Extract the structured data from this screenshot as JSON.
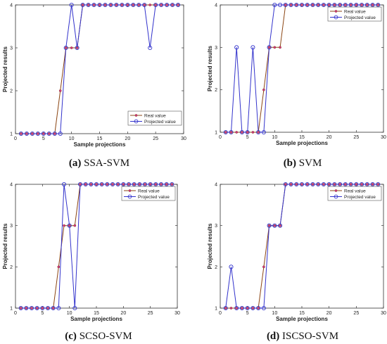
{
  "chart_data": [
    {
      "type": "line",
      "caption_letter": "(a)",
      "caption_text": " SSA-SVM",
      "xlabel": "Sample projections",
      "ylabel": "Projected results",
      "xlim": [
        0,
        30
      ],
      "ylim": [
        1,
        4
      ],
      "xticks": [
        0,
        5,
        10,
        15,
        20,
        25,
        30
      ],
      "yticks": [
        1,
        2,
        3,
        4
      ],
      "legend_position": "lower-right",
      "series": [
        {
          "name": "Real value",
          "color": "#8B4513",
          "marker": "dot",
          "x": [
            1,
            2,
            3,
            4,
            5,
            6,
            7,
            8,
            9,
            10,
            11,
            12,
            13,
            14,
            15,
            16,
            17,
            18,
            19,
            20,
            21,
            22,
            23,
            24,
            25,
            26,
            27,
            28,
            29
          ],
          "y": [
            1,
            1,
            1,
            1,
            1,
            1,
            1,
            2,
            3,
            3,
            3,
            4,
            4,
            4,
            4,
            4,
            4,
            4,
            4,
            4,
            4,
            4,
            4,
            4,
            4,
            4,
            4,
            4,
            4
          ]
        },
        {
          "name": "Projected value",
          "color": "#3333CC",
          "marker": "circle",
          "x": [
            1,
            2,
            3,
            4,
            5,
            6,
            7,
            8,
            9,
            10,
            11,
            12,
            13,
            14,
            15,
            16,
            17,
            18,
            19,
            20,
            21,
            22,
            23,
            24,
            25,
            26,
            27,
            28,
            29
          ],
          "y": [
            1,
            1,
            1,
            1,
            1,
            1,
            1,
            1,
            3,
            4,
            3,
            4,
            4,
            4,
            4,
            4,
            4,
            4,
            4,
            4,
            4,
            4,
            4,
            3,
            4,
            4,
            4,
            4,
            4
          ]
        }
      ]
    },
    {
      "type": "line",
      "caption_letter": "(b)",
      "caption_text": " SVM",
      "xlabel": "Sample projections",
      "ylabel": "Projected results",
      "xlim": [
        0,
        30
      ],
      "ylim": [
        1,
        4
      ],
      "xticks": [
        0,
        5,
        10,
        15,
        20,
        25,
        30
      ],
      "yticks": [
        1,
        2,
        3,
        4
      ],
      "legend_position": "upper-right",
      "series": [
        {
          "name": "Real value",
          "color": "#8B4513",
          "marker": "dot",
          "x": [
            1,
            2,
            3,
            4,
            5,
            6,
            7,
            8,
            9,
            10,
            11,
            12,
            13,
            14,
            15,
            16,
            17,
            18,
            19,
            20,
            21,
            22,
            23,
            24,
            25,
            26,
            27,
            28,
            29
          ],
          "y": [
            1,
            1,
            1,
            1,
            1,
            1,
            1,
            2,
            3,
            3,
            3,
            4,
            4,
            4,
            4,
            4,
            4,
            4,
            4,
            4,
            4,
            4,
            4,
            4,
            4,
            4,
            4,
            4,
            4
          ]
        },
        {
          "name": "Projected value",
          "color": "#3333CC",
          "marker": "circle",
          "x": [
            1,
            2,
            3,
            4,
            5,
            6,
            7,
            8,
            9,
            10,
            11,
            12,
            13,
            14,
            15,
            16,
            17,
            18,
            19,
            20,
            21,
            22,
            23,
            24,
            25,
            26,
            27,
            28,
            29
          ],
          "y": [
            1,
            1,
            3,
            1,
            1,
            3,
            1,
            1,
            3,
            4,
            4,
            4,
            4,
            4,
            4,
            4,
            4,
            4,
            4,
            4,
            4,
            4,
            4,
            4,
            4,
            4,
            4,
            4,
            4
          ]
        }
      ]
    },
    {
      "type": "line",
      "caption_letter": "(c)",
      "caption_text": " SCSO-SVM",
      "xlabel": "Sample projections",
      "ylabel": "Projected results",
      "xlim": [
        0,
        30
      ],
      "ylim": [
        1,
        4
      ],
      "xticks": [
        0,
        5,
        10,
        15,
        20,
        25,
        30
      ],
      "yticks": [
        1,
        2,
        3,
        4
      ],
      "legend_position": "upper-right",
      "series": [
        {
          "name": "Real value",
          "color": "#8B4513",
          "marker": "dot",
          "x": [
            1,
            2,
            3,
            4,
            5,
            6,
            7,
            8,
            9,
            10,
            11,
            12,
            13,
            14,
            15,
            16,
            17,
            18,
            19,
            20,
            21,
            22,
            23,
            24,
            25,
            26,
            27,
            28,
            29
          ],
          "y": [
            1,
            1,
            1,
            1,
            1,
            1,
            1,
            2,
            3,
            3,
            3,
            4,
            4,
            4,
            4,
            4,
            4,
            4,
            4,
            4,
            4,
            4,
            4,
            4,
            4,
            4,
            4,
            4,
            4
          ]
        },
        {
          "name": "Projected value",
          "color": "#3333CC",
          "marker": "circle",
          "x": [
            1,
            2,
            3,
            4,
            5,
            6,
            7,
            8,
            9,
            10,
            11,
            12,
            13,
            14,
            15,
            16,
            17,
            18,
            19,
            20,
            21,
            22,
            23,
            24,
            25,
            26,
            27,
            28,
            29
          ],
          "y": [
            1,
            1,
            1,
            1,
            1,
            1,
            1,
            1,
            4,
            3,
            1,
            4,
            4,
            4,
            4,
            4,
            4,
            4,
            4,
            4,
            4,
            4,
            4,
            4,
            4,
            4,
            4,
            4,
            4
          ]
        }
      ]
    },
    {
      "type": "line",
      "caption_letter": "(d)",
      "caption_text": " ISCSO-SVM",
      "xlabel": "Sample projections",
      "ylabel": "Projected results",
      "xlim": [
        0,
        30
      ],
      "ylim": [
        1,
        4
      ],
      "xticks": [
        0,
        5,
        10,
        15,
        20,
        25,
        30
      ],
      "yticks": [
        1,
        2,
        3,
        4
      ],
      "legend_position": "upper-right",
      "series": [
        {
          "name": "Real value",
          "color": "#8B4513",
          "marker": "dot",
          "x": [
            1,
            2,
            3,
            4,
            5,
            6,
            7,
            8,
            9,
            10,
            11,
            12,
            13,
            14,
            15,
            16,
            17,
            18,
            19,
            20,
            21,
            22,
            23,
            24,
            25,
            26,
            27,
            28,
            29
          ],
          "y": [
            1,
            1,
            1,
            1,
            1,
            1,
            1,
            2,
            3,
            3,
            3,
            4,
            4,
            4,
            4,
            4,
            4,
            4,
            4,
            4,
            4,
            4,
            4,
            4,
            4,
            4,
            4,
            4,
            4
          ]
        },
        {
          "name": "Projected value",
          "color": "#3333CC",
          "marker": "circle",
          "x": [
            1,
            2,
            3,
            4,
            5,
            6,
            7,
            8,
            9,
            10,
            11,
            12,
            13,
            14,
            15,
            16,
            17,
            18,
            19,
            20,
            21,
            22,
            23,
            24,
            25,
            26,
            27,
            28,
            29
          ],
          "y": [
            1,
            2,
            1,
            1,
            1,
            1,
            1,
            1,
            3,
            3,
            3,
            4,
            4,
            4,
            4,
            4,
            4,
            4,
            4,
            4,
            4,
            4,
            4,
            4,
            4,
            4,
            4,
            4,
            4
          ]
        }
      ]
    }
  ]
}
